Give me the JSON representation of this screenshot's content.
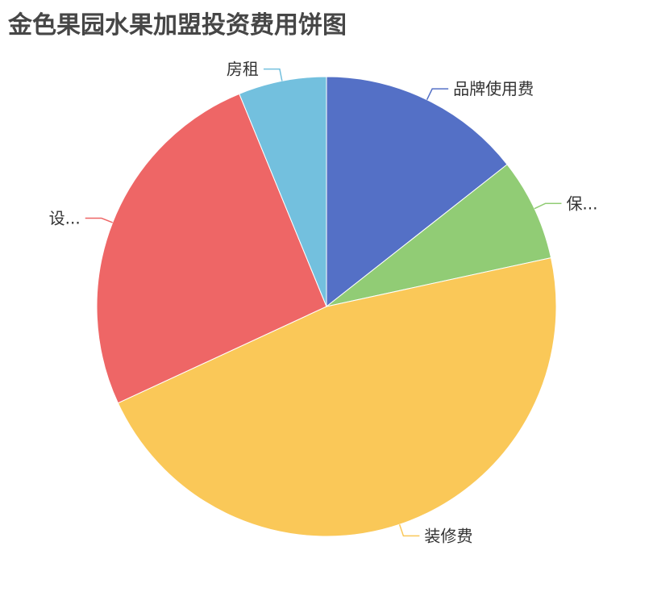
{
  "chart_data": {
    "type": "pie",
    "title": "金色果园水果加盟投资费用饼图",
    "slices": [
      {
        "label": "品牌使用费",
        "value": 14.4,
        "color": "#5470c6"
      },
      {
        "label": "保...",
        "value": 7.2,
        "color": "#91cc75"
      },
      {
        "label": "装修费",
        "value": 46.5,
        "color": "#fac858"
      },
      {
        "label": "设...",
        "value": 25.7,
        "color": "#ee6666"
      },
      {
        "label": "房租",
        "value": 6.2,
        "color": "#73c0de"
      }
    ],
    "start_angle": 90,
    "direction": "clockwise",
    "legend": "none"
  }
}
